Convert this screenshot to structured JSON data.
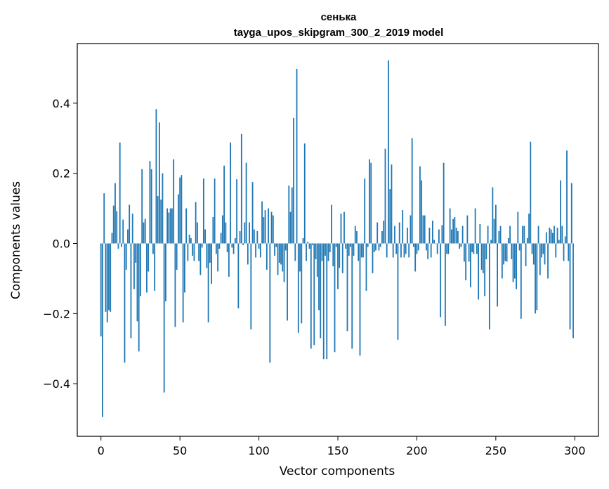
{
  "chart_data": {
    "type": "bar",
    "title": "сенька",
    "subtitle": "tayga_upos_skipgram_300_2_2019 model",
    "xlabel": "Vector components",
    "ylabel": "Components values",
    "xlim": [
      -15,
      315
    ],
    "ylim": [
      -0.55,
      0.57
    ],
    "xticks": [
      0,
      50,
      100,
      150,
      200,
      250,
      300
    ],
    "xtick_labels": [
      "0",
      "50",
      "100",
      "150",
      "200",
      "250",
      "300"
    ],
    "yticks": [
      -0.4,
      -0.2,
      0.0,
      0.2,
      0.4
    ],
    "ytick_labels": [
      "−0.4",
      "−0.2",
      "0.0",
      "0.2",
      "0.4"
    ],
    "bar_color": "#1f77b4",
    "grid": false,
    "x": [
      0,
      1,
      2,
      3,
      4,
      5,
      6,
      7,
      8,
      9,
      10,
      11,
      12,
      13,
      14,
      15,
      16,
      17,
      18,
      19,
      20,
      21,
      22,
      23,
      24,
      25,
      26,
      27,
      28,
      29,
      30,
      31,
      32,
      33,
      34,
      35,
      36,
      37,
      38,
      39,
      40,
      41,
      42,
      43,
      44,
      45,
      46,
      47,
      48,
      49,
      50,
      51,
      52,
      53,
      54,
      55,
      56,
      57,
      58,
      59,
      60,
      61,
      62,
      63,
      64,
      65,
      66,
      67,
      68,
      69,
      70,
      71,
      72,
      73,
      74,
      75,
      76,
      77,
      78,
      79,
      80,
      81,
      82,
      83,
      84,
      85,
      86,
      87,
      88,
      89,
      90,
      91,
      92,
      93,
      94,
      95,
      96,
      97,
      98,
      99,
      100,
      101,
      102,
      103,
      104,
      105,
      106,
      107,
      108,
      109,
      110,
      111,
      112,
      113,
      114,
      115,
      116,
      117,
      118,
      119,
      120,
      121,
      122,
      123,
      124,
      125,
      126,
      127,
      128,
      129,
      130,
      131,
      132,
      133,
      134,
      135,
      136,
      137,
      138,
      139,
      140,
      141,
      142,
      143,
      144,
      145,
      146,
      147,
      148,
      149,
      150,
      151,
      152,
      153,
      154,
      155,
      156,
      157,
      158,
      159,
      160,
      161,
      162,
      163,
      164,
      165,
      166,
      167,
      168,
      169,
      170,
      171,
      172,
      173,
      174,
      175,
      176,
      177,
      178,
      179,
      180,
      181,
      182,
      183,
      184,
      185,
      186,
      187,
      188,
      189,
      190,
      191,
      192,
      193,
      194,
      195,
      196,
      197,
      198,
      199,
      200,
      201,
      202,
      203,
      204,
      205,
      206,
      207,
      208,
      209,
      210,
      211,
      212,
      213,
      214,
      215,
      216,
      217,
      218,
      219,
      220,
      221,
      222,
      223,
      224,
      225,
      226,
      227,
      228,
      229,
      230,
      231,
      232,
      233,
      234,
      235,
      236,
      237,
      238,
      239,
      240,
      241,
      242,
      243,
      244,
      245,
      246,
      247,
      248,
      249,
      250,
      251,
      252,
      253,
      254,
      255,
      256,
      257,
      258,
      259,
      260,
      261,
      262,
      263,
      264,
      265,
      266,
      267,
      268,
      269,
      270,
      271,
      272,
      273,
      274,
      275,
      276,
      277,
      278,
      279,
      280,
      281,
      282,
      283,
      284,
      285,
      286,
      287,
      288,
      289,
      290,
      291,
      292,
      293,
      294,
      295,
      296,
      297,
      298,
      299
    ],
    "values": [
      -0.265,
      -0.495,
      0.143,
      -0.195,
      -0.225,
      -0.19,
      -0.195,
      0.03,
      0.108,
      0.172,
      0.092,
      -0.015,
      0.288,
      -0.01,
      0.068,
      -0.34,
      -0.075,
      0.04,
      0.11,
      -0.27,
      0.085,
      -0.13,
      -0.055,
      -0.222,
      -0.308,
      -0.15,
      0.212,
      0.06,
      0.07,
      -0.14,
      -0.08,
      0.235,
      0.212,
      -0.03,
      -0.135,
      0.383,
      0.135,
      0.345,
      0.125,
      0.2,
      -0.425,
      -0.165,
      0.1,
      0.088,
      0.1,
      0.1,
      0.24,
      -0.238,
      -0.075,
      0.14,
      0.188,
      0.195,
      -0.225,
      -0.14,
      0.1,
      -0.05,
      0.025,
      0.015,
      -0.035,
      -0.05,
      0.118,
      0.06,
      -0.05,
      -0.09,
      -0.012,
      0.185,
      0.04,
      -0.07,
      -0.225,
      -0.055,
      -0.115,
      0.075,
      0.185,
      -0.03,
      -0.08,
      -0.015,
      0.03,
      0.08,
      0.222,
      0.06,
      -0.025,
      -0.095,
      0.288,
      -0.012,
      -0.03,
      0.015,
      0.183,
      -0.185,
      0.035,
      0.312,
      -0.005,
      0.06,
      0.23,
      -0.06,
      0.06,
      -0.245,
      0.175,
      0.04,
      -0.04,
      0.035,
      -0.015,
      -0.04,
      0.12,
      0.075,
      0.095,
      -0.075,
      0.1,
      -0.34,
      0.09,
      0.08,
      -0.035,
      -0.01,
      -0.09,
      -0.055,
      -0.06,
      -0.08,
      -0.11,
      -0.02,
      -0.22,
      0.165,
      0.09,
      0.16,
      0.358,
      -0.05,
      0.498,
      -0.255,
      -0.08,
      -0.228,
      0.015,
      0.285,
      -0.05,
      0.005,
      -0.015,
      -0.3,
      -0.005,
      -0.29,
      -0.045,
      -0.095,
      -0.19,
      -0.27,
      -0.05,
      -0.33,
      -0.035,
      -0.33,
      -0.05,
      -0.025,
      0.11,
      -0.065,
      -0.31,
      -0.01,
      -0.13,
      -0.07,
      0.085,
      -0.085,
      0.09,
      -0.015,
      -0.25,
      -0.035,
      -0.01,
      -0.3,
      -0.035,
      0.05,
      0.035,
      -0.05,
      -0.32,
      -0.04,
      -0.04,
      0.185,
      -0.135,
      -0.01,
      0.24,
      0.23,
      -0.085,
      -0.025,
      -0.02,
      0.06,
      -0.02,
      -0.01,
      0.035,
      0.065,
      0.27,
      -0.04,
      0.522,
      0.155,
      0.225,
      -0.04,
      0.05,
      -0.03,
      -0.275,
      0.06,
      -0.04,
      0.095,
      -0.04,
      -0.03,
      0.045,
      -0.04,
      0.08,
      0.3,
      -0.01,
      -0.08,
      -0.03,
      -0.02,
      0.22,
      0.18,
      0.08,
      0.08,
      -0.02,
      -0.045,
      0.045,
      -0.04,
      0.065,
      0.01,
      0.0,
      -0.03,
      0.04,
      -0.21,
      0.052,
      0.23,
      -0.235,
      -0.03,
      -0.03,
      0.1,
      0.04,
      0.07,
      0.075,
      0.045,
      0.035,
      -0.015,
      -0.01,
      0.05,
      -0.052,
      -0.105,
      0.08,
      -0.052,
      -0.125,
      -0.025,
      -0.03,
      0.1,
      -0.03,
      -0.16,
      0.055,
      -0.075,
      -0.085,
      -0.15,
      -0.045,
      0.05,
      -0.245,
      0.01,
      0.16,
      0.07,
      0.11,
      -0.18,
      0.035,
      0.05,
      -0.1,
      -0.06,
      -0.05,
      -0.052,
      0.015,
      0.05,
      -0.045,
      -0.11,
      -0.1,
      -0.13,
      0.09,
      -0.02,
      -0.215,
      0.05,
      0.05,
      -0.065,
      0.015,
      0.085,
      0.29,
      -0.03,
      -0.06,
      -0.2,
      -0.19,
      0.05,
      -0.09,
      -0.04,
      -0.03,
      -0.06,
      0.032,
      -0.1,
      0.045,
      0.04,
      0.03,
      0.05,
      -0.04,
      0.045,
      0.01,
      0.18,
      0.05,
      -0.05,
      0.02,
      0.265,
      -0.05,
      -0.245,
      0.172,
      -0.27
    ]
  }
}
